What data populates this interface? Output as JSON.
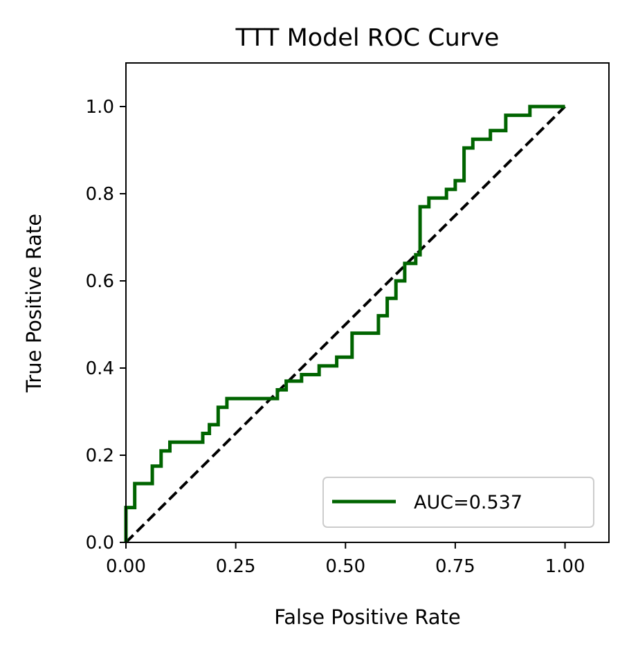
{
  "chart_data": {
    "type": "line",
    "title": "TTT Model ROC Curve",
    "xlabel": "False Positive Rate",
    "ylabel": "True Positive Rate",
    "xlim": [
      0.0,
      1.1
    ],
    "ylim": [
      0.0,
      1.1
    ],
    "xticks": [
      0.0,
      0.25,
      0.5,
      0.75,
      1.0
    ],
    "xtick_labels": [
      "0.00",
      "0.25",
      "0.50",
      "0.75",
      "1.00"
    ],
    "yticks": [
      0.0,
      0.2,
      0.4,
      0.6,
      0.8,
      1.0
    ],
    "ytick_labels": [
      "0.0",
      "0.2",
      "0.4",
      "0.6",
      "0.8",
      "1.0"
    ],
    "grid": false,
    "legend_position": "lower right",
    "series": [
      {
        "name": "AUC=0.537",
        "style": "solid",
        "color": "#006400",
        "x": [
          0.0,
          0.0,
          0.02,
          0.02,
          0.06,
          0.06,
          0.08,
          0.08,
          0.1,
          0.1,
          0.175,
          0.175,
          0.19,
          0.19,
          0.21,
          0.21,
          0.23,
          0.23,
          0.345,
          0.345,
          0.365,
          0.365,
          0.4,
          0.4,
          0.44,
          0.44,
          0.48,
          0.48,
          0.515,
          0.515,
          0.575,
          0.575,
          0.595,
          0.595,
          0.615,
          0.615,
          0.635,
          0.635,
          0.66,
          0.66,
          0.67,
          0.67,
          0.69,
          0.69,
          0.73,
          0.73,
          0.75,
          0.75,
          0.77,
          0.77,
          0.79,
          0.79,
          0.83,
          0.83,
          0.865,
          0.865,
          0.92,
          0.92,
          1.0
        ],
        "y": [
          0.0,
          0.08,
          0.08,
          0.135,
          0.135,
          0.175,
          0.175,
          0.21,
          0.21,
          0.23,
          0.23,
          0.25,
          0.25,
          0.27,
          0.27,
          0.31,
          0.31,
          0.33,
          0.33,
          0.35,
          0.35,
          0.37,
          0.37,
          0.385,
          0.385,
          0.405,
          0.405,
          0.425,
          0.425,
          0.48,
          0.48,
          0.52,
          0.52,
          0.56,
          0.56,
          0.6,
          0.6,
          0.64,
          0.64,
          0.66,
          0.66,
          0.77,
          0.77,
          0.79,
          0.79,
          0.81,
          0.81,
          0.83,
          0.83,
          0.905,
          0.905,
          0.925,
          0.925,
          0.945,
          0.945,
          0.98,
          0.98,
          1.0,
          1.0
        ]
      },
      {
        "style": "dashed",
        "color": "#000000",
        "x": [
          0.0,
          1.0
        ],
        "y": [
          0.0,
          1.0
        ]
      }
    ]
  }
}
